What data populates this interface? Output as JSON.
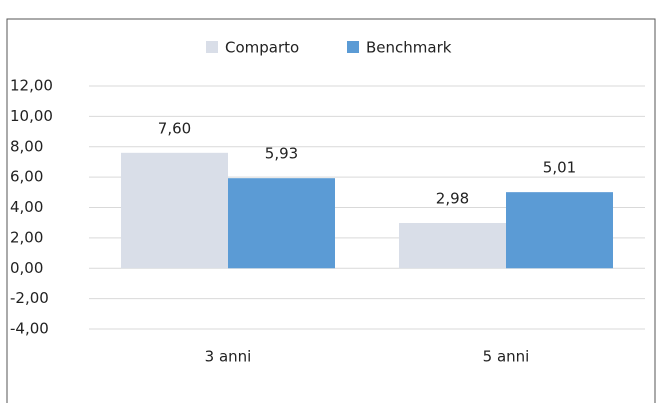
{
  "chart_data": {
    "type": "bar",
    "categories": [
      "3 anni",
      "5 anni"
    ],
    "series": [
      {
        "name": "Comparto",
        "color": "#d9dee8",
        "values": [
          7.6,
          2.98
        ],
        "value_labels": [
          "7,60",
          "2,98"
        ]
      },
      {
        "name": "Benchmark",
        "color": "#5b9bd5",
        "values": [
          5.93,
          5.01
        ],
        "value_labels": [
          "5,93",
          "5,01"
        ]
      }
    ],
    "ylim": [
      -4,
      12
    ],
    "yticks": [
      {
        "value": -4,
        "label": "-4,00"
      },
      {
        "value": -2,
        "label": "-2,00"
      },
      {
        "value": 0,
        "label": "0,00"
      },
      {
        "value": 2,
        "label": "2,00"
      },
      {
        "value": 4,
        "label": "4,00"
      },
      {
        "value": 6,
        "label": "6,00"
      },
      {
        "value": 8,
        "label": "8,00"
      },
      {
        "value": 10,
        "label": "10,00"
      },
      {
        "value": 12,
        "label": "12,00"
      }
    ],
    "grid": true,
    "legend": "top"
  }
}
